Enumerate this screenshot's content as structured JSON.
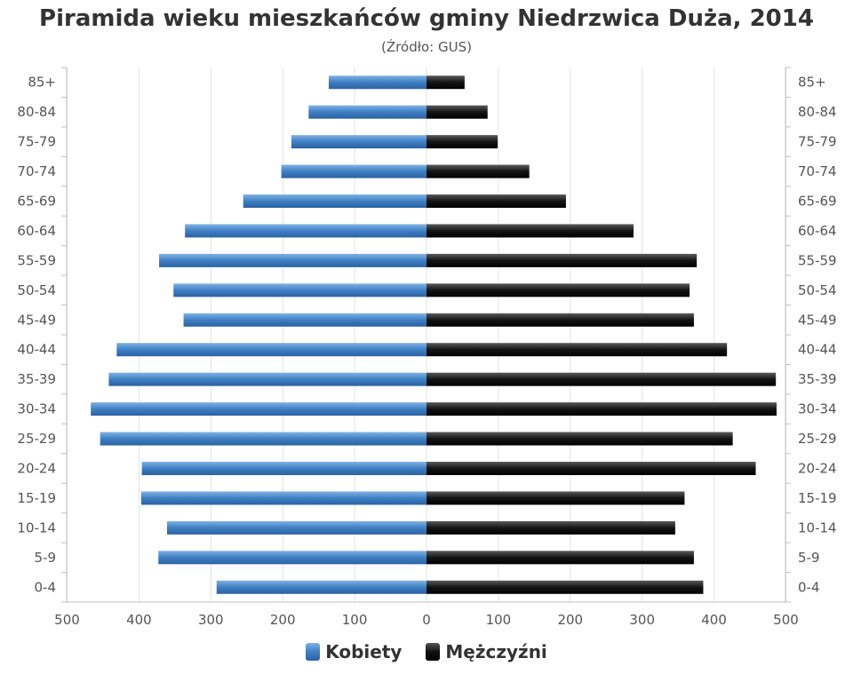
{
  "chart_data": {
    "type": "bar",
    "title": "Piramida wieku mieszkańców gminy Niedrzwica Duża, 2014",
    "subtitle": "(Źródło: GUS)",
    "categories": [
      "85+",
      "80-84",
      "75-79",
      "70-74",
      "65-69",
      "60-64",
      "55-59",
      "50-54",
      "45-49",
      "40-44",
      "35-39",
      "30-34",
      "25-29",
      "20-24",
      "15-19",
      "10-14",
      "5-9",
      "0-4"
    ],
    "series": [
      {
        "name": "Kobiety",
        "color": "#3f7fc2",
        "values": [
          136,
          164,
          188,
          202,
          255,
          336,
          372,
          352,
          338,
          431,
          442,
          467,
          454,
          396,
          397,
          361,
          373,
          292
        ]
      },
      {
        "name": "Mężczyźni",
        "color": "#111111",
        "values": [
          53,
          85,
          99,
          143,
          194,
          288,
          376,
          366,
          372,
          418,
          486,
          487,
          426,
          458,
          359,
          346,
          372,
          385
        ]
      }
    ],
    "x_ticks": [
      "500",
      "400",
      "300",
      "200",
      "100",
      "0",
      "100",
      "200",
      "300",
      "400",
      "500"
    ],
    "xlim": [
      -500,
      500
    ],
    "grid": true,
    "legend": "bottom"
  }
}
